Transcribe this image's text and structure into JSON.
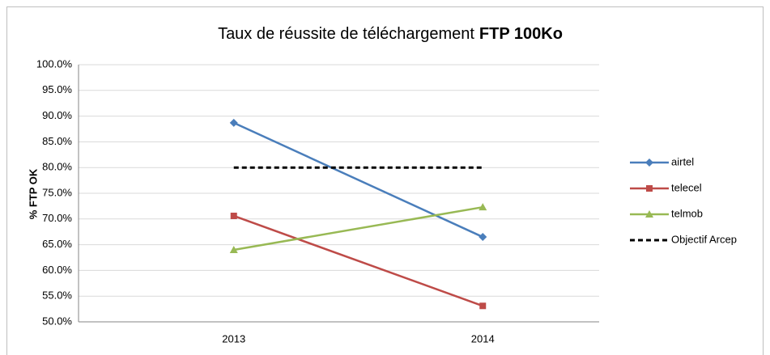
{
  "chart_data": {
    "type": "line",
    "title": [
      "Taux de réussite de téléchargement",
      "FTP 100Ko"
    ],
    "ylabel": "% FTP OK",
    "categories": [
      "2013",
      "2014"
    ],
    "series": [
      {
        "name": "airtel",
        "color": "#4a7ebb",
        "marker": "diamond",
        "values": [
          88.7,
          66.5
        ]
      },
      {
        "name": "telecel",
        "color": "#be4b48",
        "marker": "square",
        "values": [
          70.6,
          53.1
        ]
      },
      {
        "name": "telmob",
        "color": "#98b954",
        "marker": "triangle",
        "values": [
          64.0,
          72.3
        ]
      },
      {
        "name": "Objectif Arcep",
        "color": "#000000",
        "dashed": true,
        "values": [
          80,
          80
        ]
      }
    ],
    "ylim": [
      50,
      100
    ],
    "yticks": [
      {
        "value": 50,
        "label": "50.0%"
      },
      {
        "value": 55,
        "label": "55.0%"
      },
      {
        "value": 60,
        "label": "60.0%"
      },
      {
        "value": 65,
        "label": "65.0%"
      },
      {
        "value": 70,
        "label": "70.0%"
      },
      {
        "value": 75,
        "label": "75.0%"
      },
      {
        "value": 80,
        "label": "80.0%"
      },
      {
        "value": 85,
        "label": "85.0%"
      },
      {
        "value": 90,
        "label": "90.0%"
      },
      {
        "value": 95,
        "label": "95.0%"
      },
      {
        "value": 100,
        "label": "100.0%"
      }
    ],
    "grid": true,
    "legend": "right"
  }
}
